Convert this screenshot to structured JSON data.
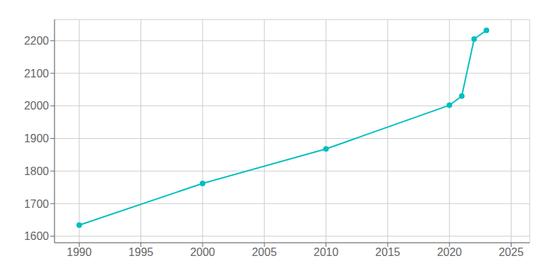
{
  "chart_data": {
    "type": "line",
    "x": [
      1990,
      2000,
      2010,
      2020,
      2021,
      2022,
      2023
    ],
    "values": [
      1634,
      1762,
      1868,
      2002,
      2030,
      2205,
      2232
    ],
    "color": "#00BFBF",
    "marker": "circle",
    "xlim": [
      1988,
      2026.5
    ],
    "ylim": [
      1580,
      2265
    ],
    "xticks": [
      1990,
      1995,
      2000,
      2005,
      2010,
      2015,
      2020,
      2025
    ],
    "yticks": [
      1600,
      1700,
      1800,
      1900,
      2000,
      2100,
      2200
    ],
    "grid": true
  }
}
